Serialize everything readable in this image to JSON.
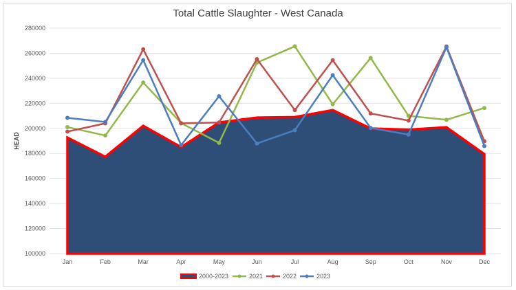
{
  "chart_data": {
    "type": "line",
    "title": "Total Cattle Slaughter - West Canada",
    "xlabel": "",
    "ylabel": "HEAD",
    "ylim": [
      100000,
      280000
    ],
    "yticks": [
      100000,
      120000,
      140000,
      160000,
      180000,
      200000,
      220000,
      240000,
      260000,
      280000
    ],
    "grid": true,
    "legend": "bottom",
    "categories": [
      "Jan",
      "Feb",
      "Mar",
      "Apr",
      "May",
      "Jun",
      "Jul",
      "Aug",
      "Sep",
      "Oct",
      "Nov",
      "Dec"
    ],
    "series": [
      {
        "name": "2000-2023",
        "type": "area",
        "color": "#2e4e77",
        "edge_color": "#ff0000",
        "values": [
          192600,
          177300,
          202000,
          185000,
          204700,
          208600,
          209000,
          214600,
          199900,
          199000,
          200900,
          179400
        ]
      },
      {
        "name": "2021",
        "type": "line",
        "color": "#92b84a",
        "values": [
          201000,
          194300,
          236600,
          204200,
          188400,
          252500,
          265500,
          219200,
          256200,
          210000,
          206800,
          216300
        ]
      },
      {
        "name": "2022",
        "type": "line",
        "color": "#c0504d",
        "values": [
          197400,
          204000,
          263100,
          204000,
          204700,
          255300,
          214600,
          254400,
          211900,
          206200,
          265400,
          189700
        ]
      },
      {
        "name": "2023",
        "type": "line",
        "color": "#4a7ebf",
        "values": [
          208400,
          205100,
          254500,
          186600,
          225600,
          187900,
          198500,
          242500,
          200300,
          195000,
          264800,
          185900
        ]
      }
    ]
  }
}
